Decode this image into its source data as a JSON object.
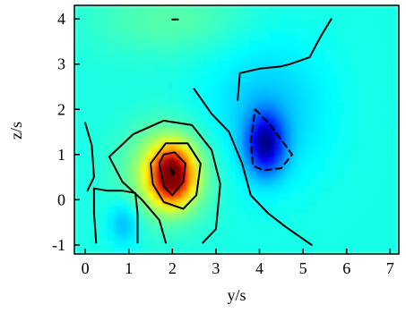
{
  "chart_data": {
    "type": "heatmap",
    "title": "",
    "xlabel": "y/s",
    "ylabel": "z/s",
    "xlim": [
      -0.25,
      7.2
    ],
    "ylim": [
      -1.2,
      4.3
    ],
    "x_ticks": [
      0,
      1,
      2,
      3,
      4,
      5,
      6,
      7
    ],
    "y_ticks": [
      -1,
      0,
      1,
      2,
      3,
      4
    ],
    "x_tick_labels": [
      "0",
      "1",
      "2",
      "3",
      "4",
      "5",
      "6",
      "7"
    ],
    "y_tick_labels": [
      "-1",
      "0",
      "1",
      "2",
      "3",
      "4"
    ],
    "colormap": "jet",
    "background_level": "cyan",
    "peaks": [
      {
        "kind": "maximum",
        "x": 2.0,
        "y": 0.55,
        "color": "#e8201a"
      },
      {
        "kind": "minimum",
        "x": 4.1,
        "y": 1.25,
        "color": "#1a10d8"
      }
    ],
    "contours": [
      {
        "style": "solid",
        "points": [
          [
            2.0,
            0.55
          ],
          [
            1.95,
            0.7
          ],
          [
            2.05,
            0.6
          ],
          [
            2.0,
            0.55
          ]
        ]
      },
      {
        "style": "solid",
        "points": [
          [
            1.7,
            0.8
          ],
          [
            1.8,
            1.0
          ],
          [
            2.05,
            1.05
          ],
          [
            2.3,
            0.8
          ],
          [
            2.25,
            0.4
          ],
          [
            2.0,
            0.1
          ],
          [
            1.8,
            0.3
          ],
          [
            1.7,
            0.8
          ]
        ]
      },
      {
        "style": "solid",
        "points": [
          [
            1.5,
            0.8
          ],
          [
            1.85,
            1.25
          ],
          [
            2.35,
            1.25
          ],
          [
            2.65,
            0.8
          ],
          [
            2.55,
            0.1
          ],
          [
            2.25,
            -0.2
          ],
          [
            1.8,
            -0.05
          ],
          [
            1.55,
            0.35
          ],
          [
            1.5,
            0.8
          ]
        ]
      },
      {
        "style": "solid",
        "points": [
          [
            0.55,
            0.95
          ],
          [
            1.1,
            1.45
          ],
          [
            1.8,
            1.75
          ],
          [
            2.45,
            1.65
          ],
          [
            2.9,
            1.1
          ],
          [
            3.1,
            0.35
          ],
          [
            3.0,
            -0.65
          ],
          [
            2.7,
            -0.95
          ]
        ]
      },
      {
        "style": "solid",
        "points": [
          [
            1.85,
            -0.95
          ],
          [
            1.7,
            -0.45
          ],
          [
            1.3,
            0.0
          ],
          [
            0.85,
            0.4
          ],
          [
            0.55,
            0.95
          ]
        ]
      },
      {
        "style": "solid",
        "points": [
          [
            0.0,
            1.7
          ],
          [
            0.15,
            1.2
          ],
          [
            0.2,
            0.5
          ],
          [
            0.05,
            0.2
          ]
        ]
      },
      {
        "style": "solid",
        "points": [
          [
            0.2,
            0.25
          ],
          [
            0.5,
            0.2
          ],
          [
            0.85,
            0.2
          ],
          [
            1.15,
            0.15
          ],
          [
            1.2,
            -0.3
          ],
          [
            1.2,
            -0.95
          ]
        ]
      },
      {
        "style": "solid",
        "points": [
          [
            0.2,
            0.25
          ],
          [
            0.2,
            -0.3
          ],
          [
            0.25,
            -0.95
          ]
        ]
      },
      {
        "style": "solid",
        "points": [
          [
            2.5,
            2.45
          ],
          [
            2.9,
            1.9
          ],
          [
            3.3,
            1.5
          ],
          [
            3.6,
            0.8
          ],
          [
            3.8,
            0.1
          ],
          [
            4.2,
            -0.3
          ],
          [
            4.6,
            -0.6
          ],
          [
            5.2,
            -1.0
          ]
        ]
      },
      {
        "style": "solid",
        "points": [
          [
            3.5,
            2.2
          ],
          [
            3.55,
            2.8
          ],
          [
            4.0,
            2.9
          ],
          [
            4.5,
            2.95
          ],
          [
            4.7,
            3.0
          ],
          [
            5.15,
            3.15
          ],
          [
            5.4,
            3.6
          ],
          [
            5.65,
            4.0
          ]
        ]
      },
      {
        "style": "dashed",
        "points": [
          [
            3.9,
            2.0
          ],
          [
            4.25,
            1.65
          ],
          [
            4.75,
            1.0
          ],
          [
            4.5,
            0.7
          ],
          [
            4.1,
            0.65
          ],
          [
            3.85,
            0.75
          ],
          [
            3.8,
            1.3
          ],
          [
            3.9,
            2.0
          ]
        ]
      },
      {
        "style": "solid",
        "points": [
          [
            2.0,
            3.99
          ],
          [
            2.13,
            3.99
          ]
        ]
      }
    ]
  }
}
